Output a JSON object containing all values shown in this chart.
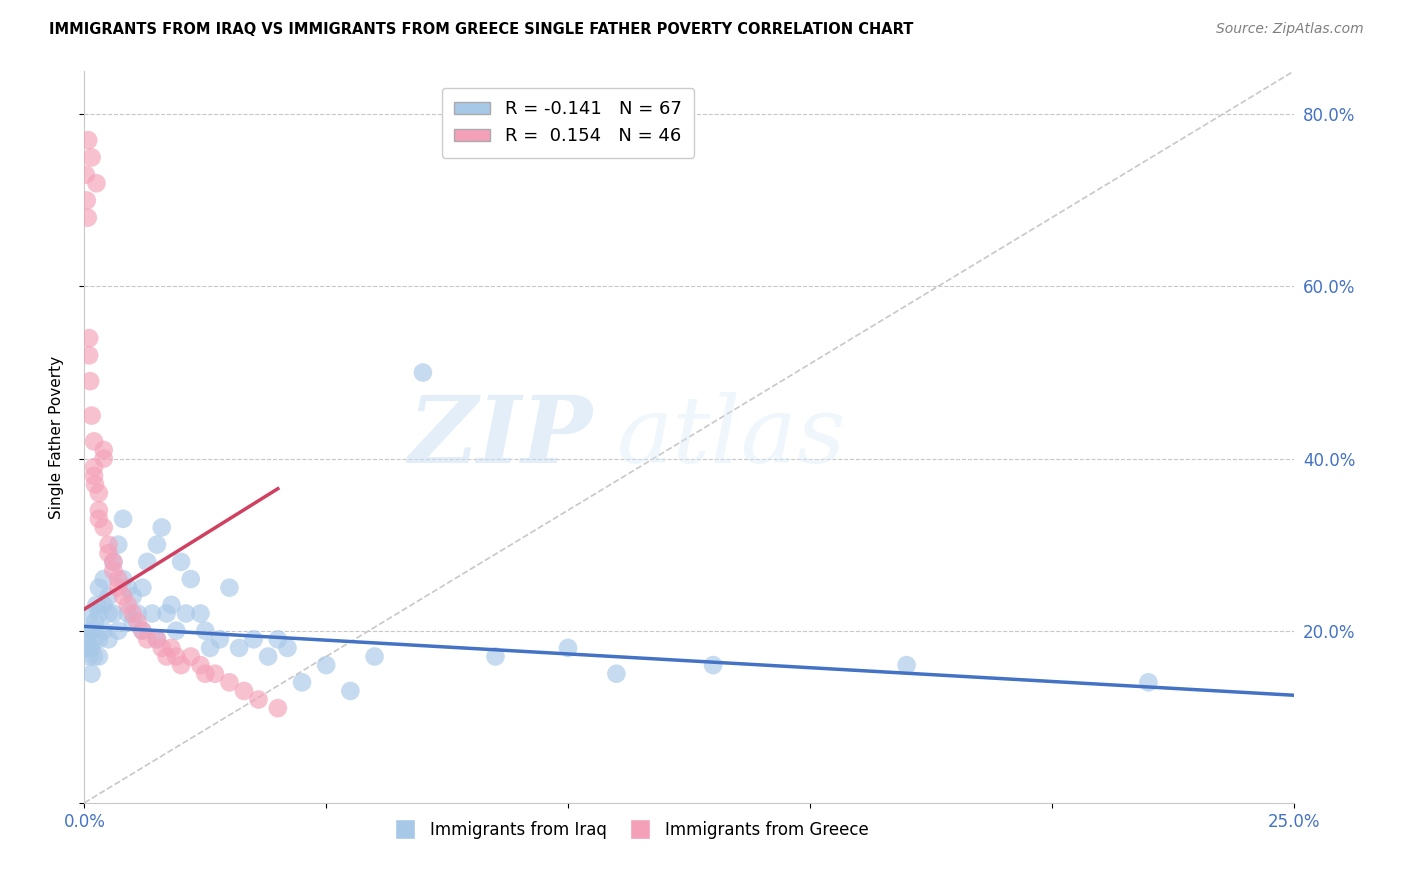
{
  "title": "IMMIGRANTS FROM IRAQ VS IMMIGRANTS FROM GREECE SINGLE FATHER POVERTY CORRELATION CHART",
  "source": "Source: ZipAtlas.com",
  "ylabel_label": "Single Father Poverty",
  "x_series_label": "Immigrants from Iraq",
  "y_series_label": "Immigrants from Greece",
  "legend_iraq_R": -0.141,
  "legend_iraq_N": 67,
  "legend_greece_R": 0.154,
  "legend_greece_N": 46,
  "iraq_color": "#a8c8e8",
  "greece_color": "#f4a0b8",
  "iraq_line_color": "#4472c4",
  "greece_line_color": "#d04060",
  "diagonal_color": "#c8c8c8",
  "x_min": 0.0,
  "x_max": 0.25,
  "y_min": 0.0,
  "y_max": 0.85,
  "x_ticks": [
    0.0,
    0.05,
    0.1,
    0.15,
    0.2,
    0.25
  ],
  "y_ticks": [
    0.2,
    0.4,
    0.6,
    0.8
  ],
  "watermark_zip": "ZIP",
  "watermark_atlas": "atlas",
  "iraq_scatter_x": [
    0.0005,
    0.0008,
    0.001,
    0.001,
    0.0012,
    0.0015,
    0.0015,
    0.002,
    0.002,
    0.002,
    0.0022,
    0.0025,
    0.003,
    0.003,
    0.003,
    0.003,
    0.004,
    0.004,
    0.004,
    0.005,
    0.005,
    0.005,
    0.006,
    0.006,
    0.007,
    0.007,
    0.008,
    0.008,
    0.009,
    0.009,
    0.01,
    0.01,
    0.011,
    0.012,
    0.012,
    0.013,
    0.014,
    0.015,
    0.015,
    0.016,
    0.017,
    0.018,
    0.019,
    0.02,
    0.021,
    0.022,
    0.024,
    0.025,
    0.026,
    0.028,
    0.03,
    0.032,
    0.035,
    0.038,
    0.04,
    0.042,
    0.045,
    0.05,
    0.055,
    0.06,
    0.07,
    0.085,
    0.1,
    0.13,
    0.17,
    0.22,
    0.11
  ],
  "iraq_scatter_y": [
    0.19,
    0.18,
    0.2,
    0.17,
    0.22,
    0.18,
    0.15,
    0.2,
    0.17,
    0.19,
    0.21,
    0.23,
    0.22,
    0.19,
    0.25,
    0.17,
    0.23,
    0.2,
    0.26,
    0.22,
    0.19,
    0.24,
    0.28,
    0.22,
    0.3,
    0.2,
    0.26,
    0.33,
    0.25,
    0.22,
    0.24,
    0.21,
    0.22,
    0.2,
    0.25,
    0.28,
    0.22,
    0.3,
    0.19,
    0.32,
    0.22,
    0.23,
    0.2,
    0.28,
    0.22,
    0.26,
    0.22,
    0.2,
    0.18,
    0.19,
    0.25,
    0.18,
    0.19,
    0.17,
    0.19,
    0.18,
    0.14,
    0.16,
    0.13,
    0.17,
    0.5,
    0.17,
    0.18,
    0.16,
    0.16,
    0.14,
    0.15
  ],
  "greece_scatter_x": [
    0.0003,
    0.0005,
    0.0007,
    0.001,
    0.001,
    0.0012,
    0.0015,
    0.002,
    0.002,
    0.002,
    0.0022,
    0.003,
    0.003,
    0.003,
    0.004,
    0.004,
    0.004,
    0.005,
    0.005,
    0.006,
    0.006,
    0.007,
    0.007,
    0.008,
    0.009,
    0.01,
    0.011,
    0.012,
    0.013,
    0.015,
    0.016,
    0.017,
    0.018,
    0.019,
    0.02,
    0.022,
    0.024,
    0.025,
    0.027,
    0.03,
    0.033,
    0.036,
    0.04,
    0.0008,
    0.0015,
    0.0025
  ],
  "greece_scatter_y": [
    0.73,
    0.7,
    0.68,
    0.54,
    0.52,
    0.49,
    0.45,
    0.42,
    0.39,
    0.38,
    0.37,
    0.36,
    0.34,
    0.33,
    0.32,
    0.4,
    0.41,
    0.3,
    0.29,
    0.28,
    0.27,
    0.26,
    0.25,
    0.24,
    0.23,
    0.22,
    0.21,
    0.2,
    0.19,
    0.19,
    0.18,
    0.17,
    0.18,
    0.17,
    0.16,
    0.17,
    0.16,
    0.15,
    0.15,
    0.14,
    0.13,
    0.12,
    0.11,
    0.77,
    0.75,
    0.72
  ],
  "iraq_line_x0": 0.0,
  "iraq_line_x1": 0.25,
  "iraq_line_y0": 0.205,
  "iraq_line_y1": 0.125,
  "greece_line_x0": 0.0,
  "greece_line_x1": 0.04,
  "greece_line_y0": 0.225,
  "greece_line_y1": 0.365
}
